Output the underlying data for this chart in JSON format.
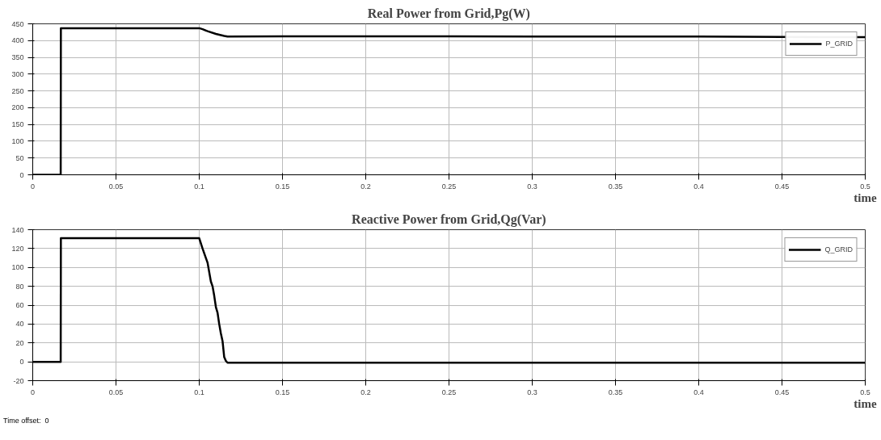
{
  "chart_data": [
    {
      "type": "line",
      "title": "Real Power from Grid,Pg(W)",
      "xlabel": "time",
      "legend": "top right",
      "grid": true,
      "line_style": "solid",
      "xlim": [
        0,
        0.5
      ],
      "xticks": [
        0,
        0.05,
        0.1,
        0.15,
        0.2,
        0.25,
        0.3,
        0.35,
        0.4,
        0.45,
        0.5
      ],
      "ylim": [
        0,
        450
      ],
      "yticks": [
        0,
        50,
        100,
        150,
        200,
        250,
        300,
        350,
        400,
        450
      ],
      "series": [
        {
          "name": "P_GRID",
          "color": "#000000",
          "x": [
            0,
            0.0168,
            0.0169,
            0.1,
            0.102,
            0.105,
            0.11,
            0.115,
            0.117,
            0.15,
            0.2,
            0.25,
            0.3,
            0.35,
            0.4,
            0.45,
            0.5
          ],
          "values": [
            0,
            0,
            437,
            437,
            434,
            428,
            420,
            414,
            412,
            413,
            413,
            413,
            412,
            412,
            412,
            411,
            410
          ]
        }
      ]
    },
    {
      "type": "line",
      "title": "Reactive Power from Grid,Qg(Var)",
      "xlabel": "time",
      "legend": "top right",
      "grid": true,
      "line_style": "solid",
      "xlim": [
        0,
        0.5
      ],
      "xticks": [
        0,
        0.05,
        0.1,
        0.15,
        0.2,
        0.25,
        0.3,
        0.35,
        0.4,
        0.45,
        0.5
      ],
      "ylim": [
        -20,
        140
      ],
      "yticks": [
        -20,
        0,
        20,
        40,
        60,
        80,
        100,
        120,
        140
      ],
      "annotations": [
        "Time offset:  0"
      ],
      "series": [
        {
          "name": "Q_GRID",
          "color": "#000000",
          "x": [
            0,
            0.0168,
            0.0169,
            0.1,
            0.102,
            0.104,
            0.105,
            0.106,
            0.107,
            0.108,
            0.109,
            0.11,
            0.111,
            0.112,
            0.113,
            0.114,
            0.115,
            0.116,
            0.117,
            0.2,
            0.3,
            0.4,
            0.5
          ],
          "values": [
            0,
            0,
            131,
            131,
            120,
            110,
            105,
            95,
            85,
            80,
            70,
            58,
            52,
            40,
            30,
            22,
            5,
            1,
            -1,
            -1,
            -1,
            -1,
            -1
          ]
        }
      ]
    }
  ]
}
